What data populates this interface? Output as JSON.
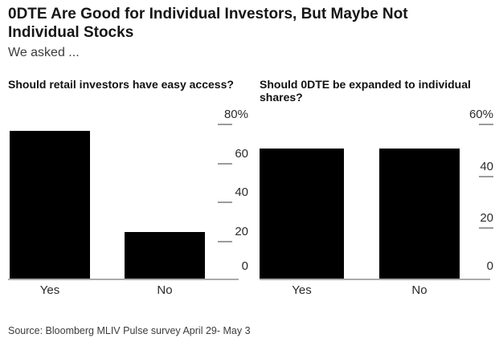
{
  "page": {
    "title": "0DTE Are Good for Individual Investors, But Maybe Not Individual Stocks",
    "subtitle": "We asked ...",
    "source": "Source: Bloomberg MLIV Pulse survey April 29- May 3"
  },
  "colors": {
    "bar": "#000000",
    "axis_line": "#ababab",
    "tick_dash": "#9c9c9c",
    "title_text": "#161616",
    "muted_text": "#3c3c3c"
  },
  "chart_data": [
    {
      "type": "bar",
      "title": "Should retail investors have easy access?",
      "categories": [
        "Yes",
        "No"
      ],
      "values": [
        76,
        24
      ],
      "unit": "%",
      "xlabel": "",
      "ylabel": "",
      "ylim": [
        0,
        80
      ],
      "yticks": [
        0,
        20,
        40,
        60,
        80
      ],
      "ytick_labels": [
        "0",
        "20",
        "40",
        "60",
        "80%"
      ],
      "bar_color": "#000000",
      "axis_side": "right",
      "grid": false,
      "legend": false
    },
    {
      "type": "bar",
      "title": "Should 0DTE be expanded to individual shares?",
      "categories": [
        "Yes",
        "No"
      ],
      "values": [
        50,
        50
      ],
      "unit": "%",
      "xlabel": "",
      "ylabel": "",
      "ylim": [
        0,
        60
      ],
      "yticks": [
        0,
        20,
        40,
        60
      ],
      "ytick_labels": [
        "0",
        "20",
        "40",
        "60%"
      ],
      "bar_color": "#000000",
      "axis_side": "right",
      "grid": false,
      "legend": false
    }
  ]
}
